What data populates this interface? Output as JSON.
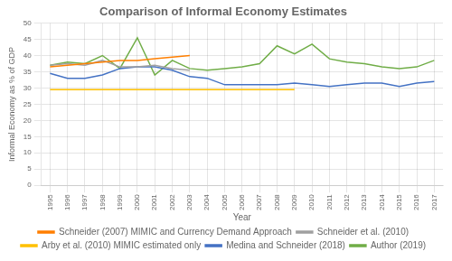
{
  "chart_data": {
    "type": "line",
    "title": "Comparison of Informal Economy Estimates",
    "x_label": "Year",
    "y_label": "Informal Economy as % of GDP",
    "x": [
      1995,
      1996,
      1997,
      1998,
      1999,
      2000,
      2001,
      2002,
      2003,
      2004,
      2005,
      2006,
      2007,
      2008,
      2009,
      2010,
      2011,
      2012,
      2013,
      2014,
      2015,
      2016,
      2017
    ],
    "series": [
      {
        "name": "Schneider (2007) MIMIC and Currency Demand Approach",
        "color": "#FF7F00",
        "values": [
          36.5,
          37.0,
          37.5,
          38.0,
          38.5,
          38.5,
          39.0,
          39.5,
          40.0,
          null,
          null,
          null,
          null,
          null,
          null,
          null,
          null,
          null,
          null,
          null,
          null,
          null,
          null
        ]
      },
      {
        "name": "Schneider et al. (2010)",
        "color": "#A0A0A0",
        "values": [
          37.0,
          37.5,
          37.0,
          38.5,
          36.5,
          36.5,
          37.0,
          36.0,
          35.5,
          null,
          null,
          null,
          null,
          null,
          null,
          null,
          null,
          null,
          null,
          null,
          null,
          null,
          null
        ]
      },
      {
        "name": "Arby et al. (2010) MIMIC estimated only",
        "color": "#FFC000",
        "values": [
          29.5,
          29.5,
          29.5,
          29.5,
          29.5,
          29.5,
          29.5,
          29.5,
          29.5,
          29.5,
          29.5,
          29.5,
          29.5,
          29.5,
          29.5,
          null,
          null,
          null,
          null,
          null,
          null,
          null,
          null
        ]
      },
      {
        "name": "Medina and Schneider (2018)",
        "color": "#4472C4",
        "values": [
          34.5,
          33.0,
          33.0,
          34.0,
          36.0,
          36.5,
          36.5,
          35.5,
          33.5,
          33.0,
          31.0,
          31.0,
          31.0,
          31.0,
          31.5,
          31.0,
          30.5,
          31.0,
          31.5,
          31.5,
          30.5,
          31.5,
          32.0
        ]
      },
      {
        "name": "Author (2019)",
        "color": "#70AD47",
        "values": [
          37.0,
          38.0,
          37.5,
          40.0,
          36.0,
          45.5,
          34.0,
          38.5,
          36.0,
          35.5,
          36.0,
          36.5,
          37.5,
          43.0,
          40.5,
          43.5,
          39.0,
          38.0,
          37.5,
          36.5,
          36.0,
          36.5,
          38.5
        ]
      }
    ],
    "xlim": [
      1994.5,
      2017.5
    ],
    "xticks": [
      1995,
      1996,
      1997,
      1998,
      1999,
      2000,
      2001,
      2002,
      2003,
      2004,
      2005,
      2006,
      2007,
      2008,
      2009,
      2010,
      2011,
      2012,
      2013,
      2014,
      2015,
      2016,
      2017
    ],
    "ylim": [
      0,
      50
    ],
    "yticks": [
      0,
      5,
      10,
      15,
      20,
      25,
      30,
      35,
      40,
      45,
      50
    ],
    "grid": true,
    "legend": "bottom"
  }
}
